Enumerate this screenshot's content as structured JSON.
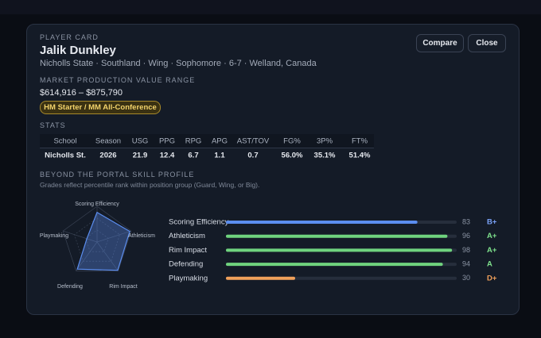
{
  "header": {
    "eyebrow": "PLAYER CARD",
    "name": "Jalik Dunkley",
    "subtitle": "Nicholls State · Southland · Wing · Sophomore · 6-7 · Welland, Canada",
    "buttons": [
      "Compare",
      "Close"
    ]
  },
  "market": {
    "title": "MARKET PRODUCTION VALUE RANGE",
    "range": "$614,916 – $875,790",
    "badge": "HM Starter / MM All-Conference"
  },
  "stats": {
    "title": "STATS",
    "columns": [
      "School",
      "Season",
      "USG",
      "PPG",
      "RPG",
      "APG",
      "AST/TOV",
      "FG%",
      "3P%",
      "FT%"
    ],
    "rows": [
      [
        "Nicholls St.",
        "2026",
        "21.9",
        "12.4",
        "6.7",
        "1.1",
        "0.7",
        "56.0%",
        "35.1%",
        "51.4%"
      ]
    ]
  },
  "skills": {
    "title": "BEYOND THE PORTAL SKILL PROFILE",
    "note": "Grades reflect percentile rank within position group (Guard, Wing, or Big).",
    "xlim": [
      0,
      100
    ],
    "items": [
      {
        "name": "Scoring Efficiency",
        "value": 83,
        "grade": "B+",
        "color": "#5b8def",
        "grade_color": "#7aa2f7"
      },
      {
        "name": "Athleticism",
        "value": 96,
        "grade": "A+",
        "color": "#6fd37e",
        "grade_color": "#7ee08c"
      },
      {
        "name": "Rim Impact",
        "value": 98,
        "grade": "A+",
        "color": "#6fd37e",
        "grade_color": "#7ee08c"
      },
      {
        "name": "Defending",
        "value": 94,
        "grade": "A",
        "color": "#6fd37e",
        "grade_color": "#7ee08c"
      },
      {
        "name": "Playmaking",
        "value": 30,
        "grade": "D+",
        "color": "#f0a05a",
        "grade_color": "#f0a05a"
      }
    ]
  }
}
